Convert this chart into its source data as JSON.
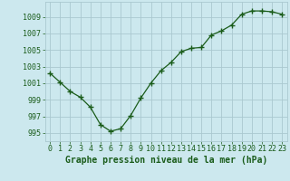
{
  "x": [
    0,
    1,
    2,
    3,
    4,
    5,
    6,
    7,
    8,
    9,
    10,
    11,
    12,
    13,
    14,
    15,
    16,
    17,
    18,
    19,
    20,
    21,
    22,
    23
  ],
  "y": [
    1002.2,
    1001.1,
    1000.0,
    999.3,
    998.1,
    996.0,
    995.2,
    995.5,
    997.1,
    999.2,
    1001.0,
    1002.5,
    1003.5,
    1004.8,
    1005.2,
    1005.3,
    1006.8,
    1007.3,
    1008.0,
    1009.3,
    1009.7,
    1009.7,
    1009.6,
    1009.3
  ],
  "line_color": "#1a5c1a",
  "marker_color": "#1a5c1a",
  "bg_color": "#cce8ee",
  "grid_color": "#aac8d0",
  "xlabel": "Graphe pression niveau de la mer (hPa)",
  "ylabel_ticks": [
    995,
    997,
    999,
    1001,
    1003,
    1005,
    1007,
    1009
  ],
  "xlim": [
    -0.5,
    23.5
  ],
  "ylim": [
    994.0,
    1010.8
  ],
  "label_color": "#1a5c1a",
  "tick_color": "#1a5c1a",
  "xlabel_fontsize": 7.0,
  "tick_fontsize": 6.0,
  "xlabel_fontweight": "bold"
}
